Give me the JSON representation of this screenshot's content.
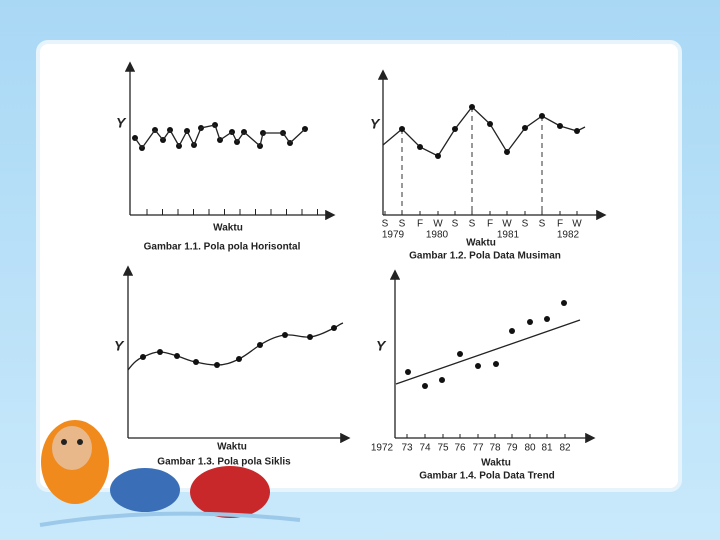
{
  "panels": [
    {
      "y_label": "Y",
      "x_label": "Waktu",
      "caption": "Gambar 1.1. Pola pola Horisontal"
    },
    {
      "y_label": "Y",
      "x_label": "Waktu",
      "caption": "Gambar 1.2. Pola Data Musiman",
      "ticks": [
        "S",
        "S",
        "F",
        "W",
        "S",
        "S",
        "F",
        "W",
        "S",
        "S",
        "F",
        "W"
      ],
      "years": [
        "1979",
        "1980",
        "1981",
        "1982"
      ]
    },
    {
      "y_label": "Y",
      "x_label": "Waktu",
      "caption": "Gambar 1.3. Pola pola Siklis"
    },
    {
      "y_label": "Y",
      "x_label": "Waktu",
      "caption": "Gambar 1.4. Pola Data Trend",
      "ticks": [
        "1972",
        "73",
        "74",
        "75",
        "76",
        "77",
        "78",
        "79",
        "80",
        "81",
        "82"
      ]
    }
  ]
}
